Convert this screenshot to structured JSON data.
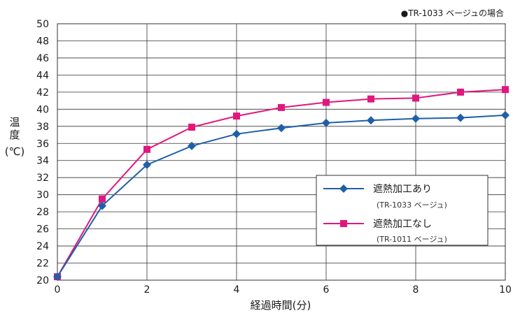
{
  "chart_data": {
    "type": "line",
    "note": "●TR-1033 ベージュの場合",
    "xlabel": "経過時間(分)",
    "ylabel_lines": [
      "温",
      "度",
      "(℃)"
    ],
    "xlim": [
      0,
      10
    ],
    "ylim": [
      20,
      50
    ],
    "x_ticks": [
      "0",
      "2",
      "4",
      "6",
      "8",
      "10"
    ],
    "y_ticks": [
      "20",
      "22",
      "24",
      "26",
      "28",
      "30",
      "32",
      "34",
      "36",
      "38",
      "40",
      "42",
      "44",
      "46",
      "48",
      "50"
    ],
    "grid": true,
    "legend_position": "bottom-right",
    "x": [
      0,
      1,
      2,
      3,
      4,
      5,
      6,
      7,
      8,
      9,
      10
    ],
    "series": [
      {
        "name": "遮熱加工あり",
        "sub": "(TR-1033 ベージュ)",
        "color": "#1f5fa8",
        "marker": "diamond",
        "values": [
          20.4,
          28.7,
          33.5,
          35.7,
          37.1,
          37.8,
          38.4,
          38.7,
          38.9,
          39.0,
          39.3
        ]
      },
      {
        "name": "遮熱加工なし",
        "sub": "(TR-1011 ベージュ)",
        "color": "#e2177d",
        "marker": "square",
        "values": [
          20.4,
          29.5,
          35.3,
          37.9,
          39.2,
          40.2,
          40.8,
          41.2,
          41.3,
          42.0,
          42.3
        ]
      }
    ]
  }
}
